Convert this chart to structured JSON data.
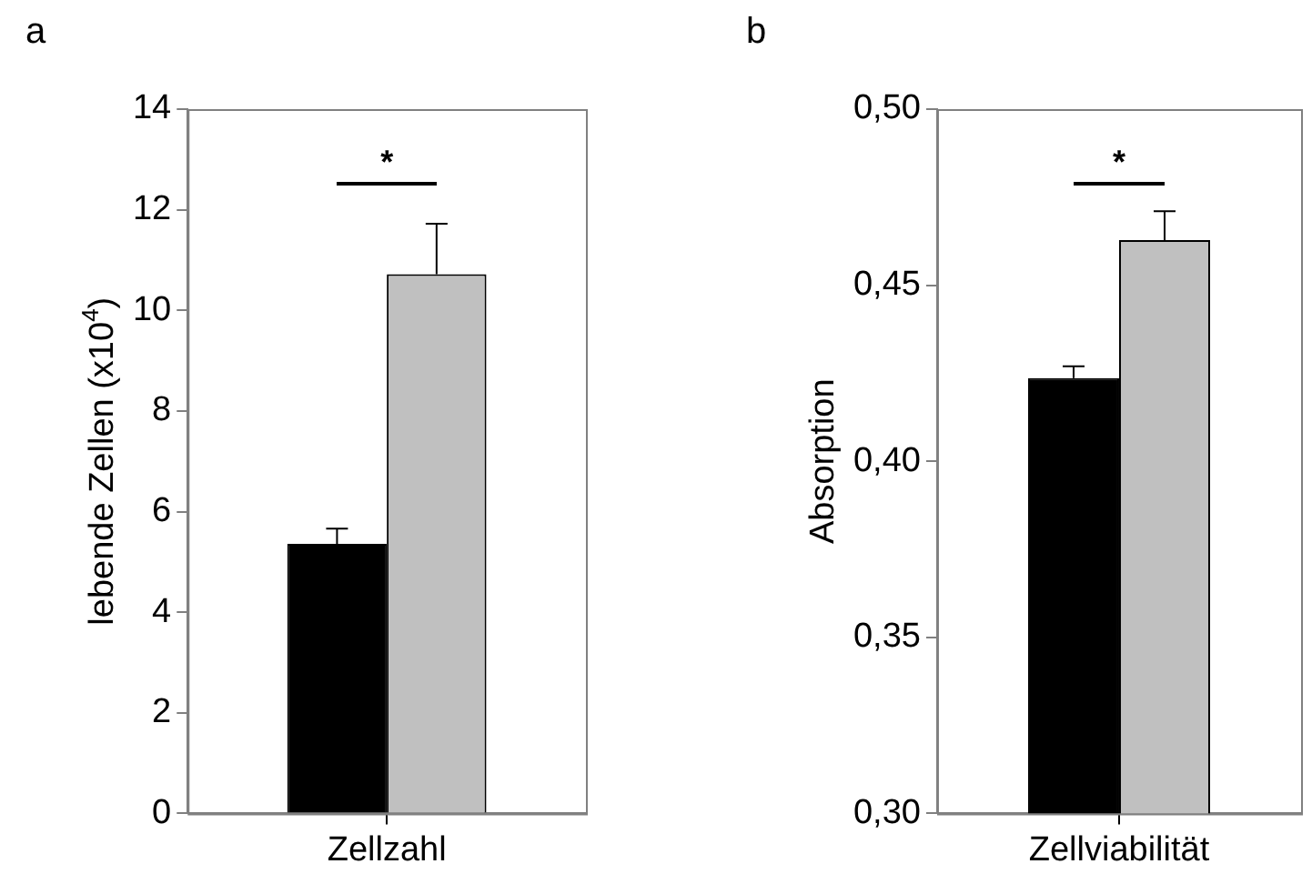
{
  "chart_data": [
    {
      "type": "bar",
      "title": "a",
      "ylabel": "lebende Zellen (x10$^{4}$)",
      "categories": [
        "Zellzahl"
      ],
      "series": [
        {
          "color": "#000000",
          "values": [
            5.36
          ],
          "errors": [
            [
              5.36,
              5.66
            ]
          ]
        },
        {
          "color": "#c0c0c0",
          "values": [
            10.72
          ],
          "errors": [
            [
              10.72,
              11.72
            ]
          ]
        }
      ],
      "ylim": [
        0,
        14
      ],
      "yticks": [
        0,
        2,
        4,
        6,
        8,
        10,
        12,
        14
      ],
      "grid": false,
      "legend": false,
      "annotations": [
        "*"
      ]
    },
    {
      "type": "bar",
      "title": "b",
      "ylabel": "Absorption",
      "categories": [
        "Zellviabilität"
      ],
      "series": [
        {
          "color": "#000000",
          "values": [
            0.4236
          ],
          "errors": [
            [
              0.4236,
              0.427
            ]
          ]
        },
        {
          "color": "#c0c0c0",
          "values": [
            0.4628
          ],
          "errors": [
            [
              0.4628,
              0.471
            ]
          ]
        }
      ],
      "ylim": [
        0.3,
        0.5
      ],
      "yticks": [
        {
          "value": 0.3,
          "label": "0,30"
        },
        {
          "value": 0.35,
          "label": "0,35"
        },
        {
          "value": 0.4,
          "label": "0,40"
        },
        {
          "value": 0.45,
          "label": "0,45"
        },
        {
          "value": 0.5,
          "label": "0,50"
        }
      ],
      "grid": false,
      "legend": false,
      "annotations": [
        "*"
      ]
    }
  ]
}
